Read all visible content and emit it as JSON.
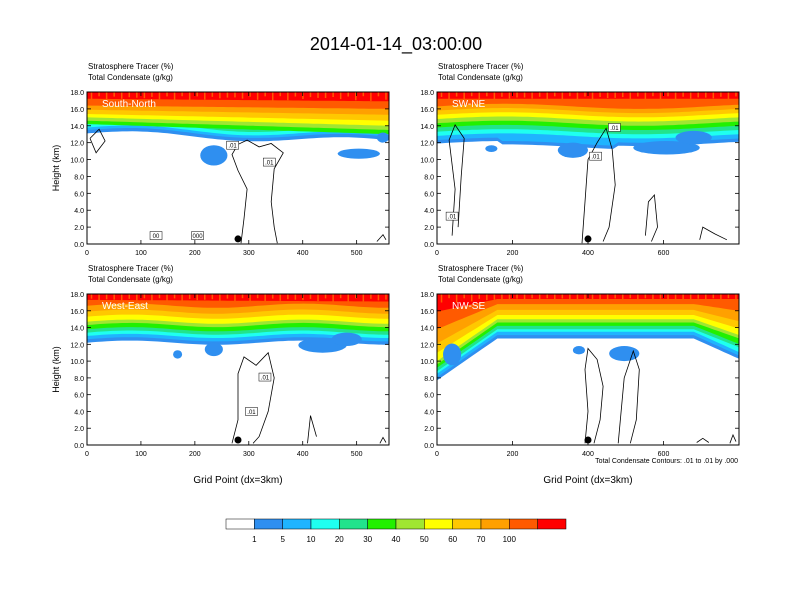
{
  "title": "2014-01-14_03:00:00",
  "colorbar": {
    "labels": [
      "1",
      "5",
      "10",
      "20",
      "30",
      "40",
      "50",
      "60",
      "70",
      "100"
    ],
    "colors": [
      "#ffffff",
      "#2f8ff0",
      "#1fb4ff",
      "#1ffff0",
      "#22e38c",
      "#22f000",
      "#a0e632",
      "#ffff00",
      "#ffc800",
      "#ffa000",
      "#ff5a00",
      "#ff0000"
    ]
  },
  "contour_note": "Total Condensate Contours: .01 to .01 by .000",
  "chart_data": [
    {
      "type": "heatmap",
      "panel_label": "South-North",
      "title_line1": "Stratosphere Tracer   (%)",
      "title_line2": "Total Condensate   (g/kg)",
      "ylabel": "Height (km)",
      "xlabel": "",
      "xlim": [
        0,
        560
      ],
      "ylim": [
        0,
        18
      ],
      "xticks": [
        "0",
        "100",
        "200",
        "300",
        "400",
        "500"
      ],
      "xtick_values": [
        0,
        100,
        200,
        300,
        400,
        500
      ],
      "yticks": [
        "0.0",
        "2.0",
        "4.0",
        "6.0",
        "8.0",
        "10.0",
        "12.0",
        "14.0",
        "16.0",
        "18.0"
      ],
      "marker_x": 280,
      "contour_labels": [
        {
          "text": ".01",
          "x": 270,
          "y": 11.7
        },
        {
          "text": ".01",
          "x": 338,
          "y": 9.7
        },
        {
          "text": "00",
          "x": 128,
          "y": 1.0
        },
        {
          "text": "000",
          "x": 205,
          "y": 1.0
        }
      ]
    },
    {
      "type": "heatmap",
      "panel_label": "SW-NE",
      "title_line1": "Stratosphere Tracer   (%)",
      "title_line2": "Total Condensate   (g/kg)",
      "ylabel": "",
      "xlabel": "",
      "xlim": [
        0,
        800
      ],
      "ylim": [
        0,
        18
      ],
      "xticks": [
        "0",
        "200",
        "400",
        "600"
      ],
      "xtick_values": [
        0,
        200,
        400,
        600
      ],
      "yticks": [
        "0.0",
        "2.0",
        "4.0",
        "6.0",
        "8.0",
        "10.0",
        "12.0",
        "14.0",
        "16.0",
        "18.0"
      ],
      "marker_x": 400,
      "contour_labels": [
        {
          "text": ".01",
          "x": 470,
          "y": 13.8
        },
        {
          "text": ".01",
          "x": 420,
          "y": 10.4
        },
        {
          "text": ".01",
          "x": 40,
          "y": 3.3
        }
      ]
    },
    {
      "type": "heatmap",
      "panel_label": "West-East",
      "title_line1": "Stratosphere Tracer   (%)",
      "title_line2": "Total Condensate   (g/kg)",
      "ylabel": "Height (km)",
      "xlabel": "Grid Point (dx=3km)",
      "xlim": [
        0,
        560
      ],
      "ylim": [
        0,
        18
      ],
      "xticks": [
        "0",
        "100",
        "200",
        "300",
        "400",
        "500"
      ],
      "xtick_values": [
        0,
        100,
        200,
        300,
        400,
        500
      ],
      "yticks": [
        "0.0",
        "2.0",
        "4.0",
        "6.0",
        "8.0",
        "10.0",
        "12.0",
        "14.0",
        "16.0",
        "18.0"
      ],
      "marker_x": 280,
      "contour_labels": [
        {
          "text": ".01",
          "x": 330,
          "y": 8.1
        },
        {
          "text": ".01",
          "x": 305,
          "y": 4.0
        }
      ]
    },
    {
      "type": "heatmap",
      "panel_label": "NW-SE",
      "title_line1": "Stratosphere Tracer   (%)",
      "title_line2": "Total Condensate   (g/kg)",
      "ylabel": "",
      "xlabel": "Grid Point (dx=3km)",
      "xlim": [
        0,
        800
      ],
      "ylim": [
        0,
        18
      ],
      "xticks": [
        "0",
        "200",
        "400",
        "600"
      ],
      "xtick_values": [
        0,
        200,
        400,
        600
      ],
      "yticks": [
        "0.0",
        "2.0",
        "4.0",
        "6.0",
        "8.0",
        "10.0",
        "12.0",
        "14.0",
        "16.0",
        "18.0"
      ],
      "marker_x": 400,
      "contour_labels": []
    }
  ]
}
